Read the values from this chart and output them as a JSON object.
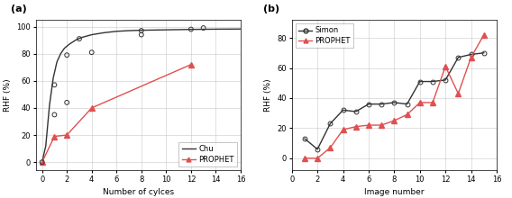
{
  "panel_a": {
    "title": "(a)",
    "xlabel": "Number of cylces",
    "ylabel": "RHF (%)",
    "xlim": [
      -0.5,
      16
    ],
    "ylim": [
      -6,
      105
    ],
    "xticks": [
      0,
      2,
      4,
      6,
      8,
      10,
      12,
      14,
      16
    ],
    "yticks": [
      0,
      20,
      40,
      60,
      80,
      100
    ],
    "chu_scatter_x": [
      0,
      1,
      1,
      2,
      2,
      3,
      4,
      8,
      8,
      12,
      13
    ],
    "chu_scatter_y": [
      0,
      35,
      57,
      79,
      44,
      91,
      81,
      94,
      97,
      98,
      99
    ],
    "chu_curve_x": [
      0,
      0.3,
      0.6,
      0.9,
      1.2,
      1.5,
      1.8,
      2.2,
      2.7,
      3.2,
      4,
      5,
      6,
      7,
      8,
      10,
      12,
      14,
      16
    ],
    "chu_curve_y": [
      0,
      12,
      42,
      62,
      74,
      80,
      84,
      87,
      90,
      92,
      94,
      95.5,
      96.5,
      97,
      97.3,
      97.6,
      97.9,
      98.1,
      98.2
    ],
    "prophet_x": [
      0,
      1,
      2,
      4,
      12
    ],
    "prophet_y": [
      0,
      19,
      20,
      40,
      72
    ],
    "legend_chu": "Chu",
    "legend_prophet": "PROPHET",
    "chu_color": "#333333",
    "prophet_color": "#e05050"
  },
  "panel_b": {
    "title": "(b)",
    "xlabel": "Image number",
    "ylabel": "RHF (%)",
    "xlim": [
      0.5,
      16
    ],
    "ylim": [
      -8,
      92
    ],
    "xticks": [
      0,
      2,
      4,
      6,
      8,
      10,
      12,
      14,
      16
    ],
    "yticks": [
      0,
      20,
      40,
      60,
      80
    ],
    "simon_x": [
      1,
      2,
      3,
      4,
      5,
      6,
      7,
      8,
      9,
      10,
      11,
      12,
      13,
      14,
      15
    ],
    "simon_y": [
      13,
      6,
      23,
      32,
      31,
      36,
      36,
      37,
      36,
      51,
      51,
      52,
      67,
      69,
      70
    ],
    "prophet_x": [
      1,
      2,
      3,
      4,
      5,
      6,
      7,
      8,
      9,
      10,
      11,
      12,
      13,
      14,
      15
    ],
    "prophet_y": [
      0,
      0,
      7,
      19,
      21,
      22,
      22,
      25,
      29,
      37,
      37,
      61,
      43,
      67,
      82
    ],
    "legend_simon": "Simon",
    "legend_prophet": "PROPHET",
    "simon_color": "#333333",
    "prophet_color": "#e05050"
  }
}
